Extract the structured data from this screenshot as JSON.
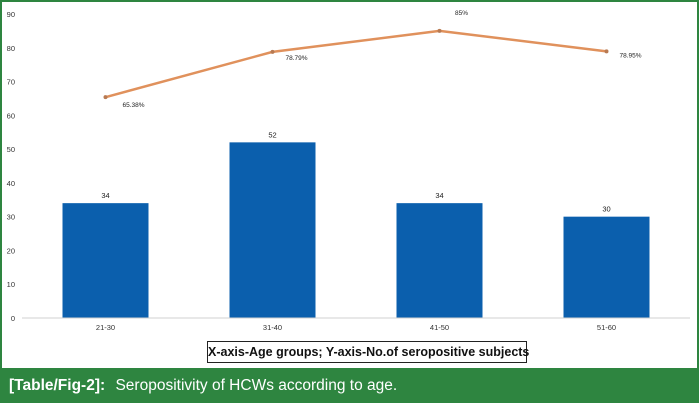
{
  "chart_data": {
    "type": "bar",
    "title": "",
    "xlabel": "",
    "ylabel": "",
    "categories": [
      "21-30",
      "31-40",
      "41-50",
      "51-60"
    ],
    "series": [
      {
        "type": "bar",
        "values": [
          34,
          52,
          34,
          30
        ],
        "data_labels": [
          "34",
          "52",
          "34",
          "30"
        ],
        "color": "#0b5fad"
      },
      {
        "type": "line",
        "values": [
          65.38,
          78.79,
          85,
          78.95
        ],
        "data_labels": [
          "65.38%",
          "78.79%",
          "85%",
          "78.95%"
        ],
        "color": "#e0915c"
      }
    ],
    "ylim": [
      0,
      90
    ],
    "yticks": [
      0,
      10,
      20,
      30,
      40,
      50,
      60,
      70,
      80,
      90
    ],
    "grid": false,
    "legend": "none"
  },
  "axis_caption": "X-axis-Age groups; Y-axis-No.of seropositive subjects",
  "figure_caption": {
    "label": "[Table/Fig-2]:",
    "text": "Seropositivity of HCWs according to age."
  }
}
